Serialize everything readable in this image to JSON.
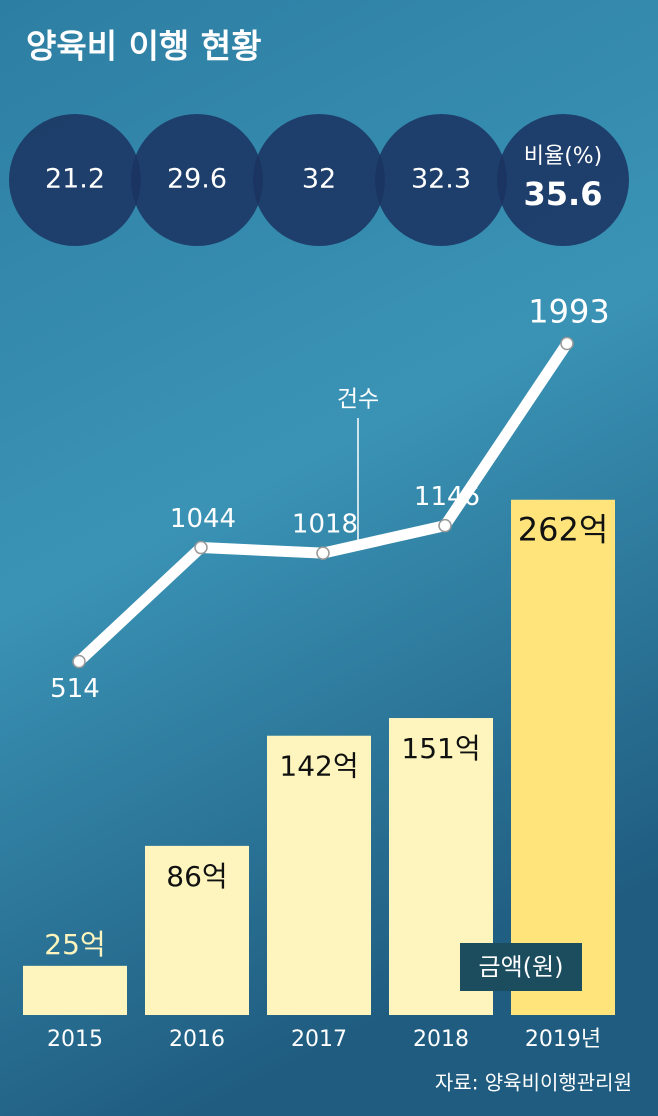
{
  "title": "양육비 이행 현황",
  "source": "자료: 양육비이행관리원",
  "chart_data": [
    {
      "type": "circles",
      "name": "비율(%)",
      "values": [
        21.2,
        29.6,
        32,
        32.3,
        35.6
      ],
      "color": "#1b3462"
    },
    {
      "type": "line",
      "name": "건수",
      "values": [
        514,
        1044,
        1018,
        1146,
        1993
      ],
      "ylim": [
        0,
        2000
      ],
      "color": "#ffffff"
    },
    {
      "type": "bar",
      "name": "금액(원)",
      "categories": [
        "2015",
        "2016",
        "2017",
        "2018",
        "2019년"
      ],
      "values": [
        25,
        86,
        142,
        151,
        262
      ],
      "value_labels": [
        "25억",
        "86억",
        "142억",
        "151억",
        "262억"
      ],
      "ylim": [
        0,
        300
      ],
      "colors": [
        "#fdf5bd",
        "#fdf5bd",
        "#fdf5bd",
        "#fdf5bd",
        "#ffe47c"
      ]
    }
  ]
}
